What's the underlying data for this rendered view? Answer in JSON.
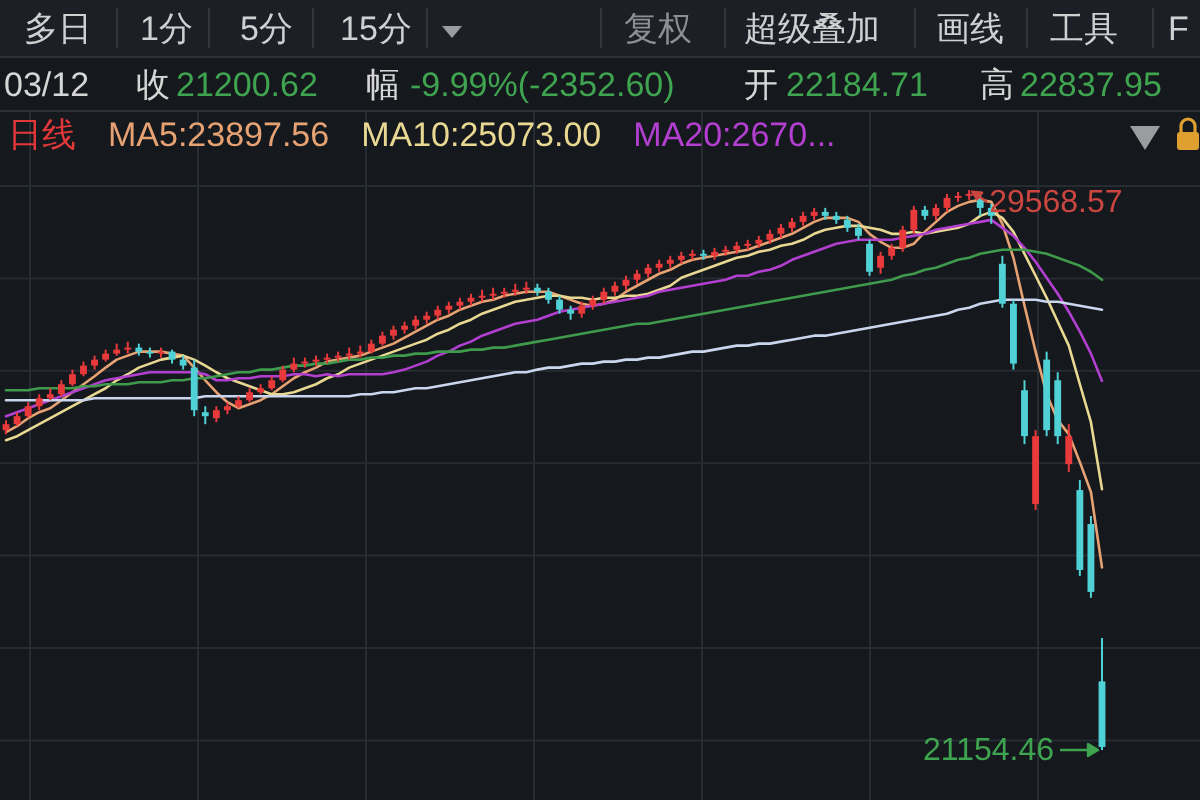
{
  "chart_data": {
    "type": "candlestick",
    "grid": true,
    "legend": "top left",
    "categories": [
      null,
      null,
      null,
      null,
      null,
      null,
      null,
      null,
      null,
      null,
      null,
      null,
      null,
      null,
      null,
      null,
      null,
      null,
      null,
      null,
      null,
      null,
      null,
      null,
      null,
      null,
      null,
      null,
      null,
      null,
      null,
      null,
      null,
      null,
      null,
      null,
      null,
      null,
      null,
      null,
      null,
      null,
      null,
      null,
      null,
      null,
      null,
      null,
      null,
      null,
      null,
      null,
      null,
      null,
      null,
      null,
      null,
      null,
      null,
      null,
      null,
      null,
      null,
      null,
      null,
      null,
      null,
      null,
      null,
      null,
      null,
      null,
      null,
      null,
      null,
      null,
      null,
      null,
      null,
      null,
      null,
      null,
      null,
      null,
      null,
      null,
      null,
      null,
      null,
      null,
      null,
      null,
      null,
      null,
      null,
      null,
      null,
      null,
      null,
      null
    ],
    "series": [
      {
        "name": "日线",
        "color": "#e2383a",
        "ohlc": [
          [
            25960,
            26110,
            25900,
            26050
          ],
          [
            26050,
            26230,
            26020,
            26170
          ],
          [
            26170,
            26380,
            26140,
            26320
          ],
          [
            26320,
            26500,
            26260,
            26440
          ],
          [
            26440,
            26590,
            26410,
            26500
          ],
          [
            26500,
            26710,
            26470,
            26650
          ],
          [
            26650,
            26870,
            26620,
            26800
          ],
          [
            26800,
            26990,
            26770,
            26930
          ],
          [
            26930,
            27080,
            26870,
            27020
          ],
          [
            27020,
            27170,
            26990,
            27110
          ],
          [
            27110,
            27260,
            27080,
            27170
          ],
          [
            27170,
            27290,
            27110,
            27200
          ],
          [
            27200,
            27260,
            27080,
            27140
          ],
          [
            27140,
            27200,
            27050,
            27110
          ],
          [
            27110,
            27200,
            27050,
            27140
          ],
          [
            27140,
            27170,
            26960,
            27020
          ],
          [
            27020,
            27080,
            26870,
            26930
          ],
          [
            26900,
            27020,
            26170,
            26260
          ],
          [
            26230,
            26320,
            26050,
            26170
          ],
          [
            26140,
            26320,
            26080,
            26260
          ],
          [
            26260,
            26380,
            26200,
            26320
          ],
          [
            26320,
            26470,
            26290,
            26410
          ],
          [
            26410,
            26590,
            26380,
            26530
          ],
          [
            26530,
            26650,
            26500,
            26590
          ],
          [
            26590,
            26770,
            26560,
            26710
          ],
          [
            26710,
            26930,
            26680,
            26870
          ],
          [
            26870,
            27050,
            26830,
            26960
          ],
          [
            26960,
            27050,
            26900,
            26990
          ],
          [
            26990,
            27080,
            26930,
            27020
          ],
          [
            27020,
            27110,
            26960,
            27050
          ],
          [
            27050,
            27140,
            26990,
            27080
          ],
          [
            27080,
            27200,
            27020,
            27110
          ],
          [
            27110,
            27230,
            27050,
            27140
          ],
          [
            27140,
            27320,
            27110,
            27260
          ],
          [
            27260,
            27440,
            27230,
            27380
          ],
          [
            27380,
            27530,
            27320,
            27470
          ],
          [
            27470,
            27590,
            27410,
            27530
          ],
          [
            27530,
            27680,
            27470,
            27620
          ],
          [
            27620,
            27740,
            27560,
            27680
          ],
          [
            27680,
            27830,
            27620,
            27770
          ],
          [
            27770,
            27890,
            27710,
            27830
          ],
          [
            27830,
            27950,
            27770,
            27890
          ],
          [
            27890,
            28010,
            27830,
            27950
          ],
          [
            27950,
            28070,
            27890,
            27980
          ],
          [
            27980,
            28100,
            27920,
            28010
          ],
          [
            28010,
            28100,
            27950,
            28040
          ],
          [
            28040,
            28160,
            27980,
            28070
          ],
          [
            28070,
            28190,
            28010,
            28100
          ],
          [
            28100,
            28160,
            27980,
            28040
          ],
          [
            28040,
            28100,
            27860,
            27920
          ],
          [
            27920,
            27980,
            27710,
            27770
          ],
          [
            27770,
            27830,
            27620,
            27710
          ],
          [
            27710,
            27890,
            27650,
            27830
          ],
          [
            27830,
            27980,
            27770,
            27920
          ],
          [
            27920,
            28100,
            27860,
            28040
          ],
          [
            28040,
            28190,
            27980,
            28130
          ],
          [
            28130,
            28280,
            28070,
            28220
          ],
          [
            28220,
            28370,
            28160,
            28310
          ],
          [
            28310,
            28460,
            28250,
            28400
          ],
          [
            28400,
            28520,
            28340,
            28460
          ],
          [
            28460,
            28580,
            28400,
            28520
          ],
          [
            28520,
            28640,
            28460,
            28580
          ],
          [
            28580,
            28670,
            28520,
            28610
          ],
          [
            28610,
            28670,
            28520,
            28580
          ],
          [
            28580,
            28700,
            28520,
            28640
          ],
          [
            28640,
            28730,
            28580,
            28670
          ],
          [
            28670,
            28790,
            28610,
            28730
          ],
          [
            28730,
            28820,
            28670,
            28760
          ],
          [
            28760,
            28880,
            28700,
            28820
          ],
          [
            28820,
            28970,
            28760,
            28910
          ],
          [
            28910,
            29060,
            28850,
            29000
          ],
          [
            29000,
            29150,
            28940,
            29090
          ],
          [
            29090,
            29240,
            29030,
            29180
          ],
          [
            29180,
            29300,
            29120,
            29240
          ],
          [
            29240,
            29300,
            29120,
            29180
          ],
          [
            29180,
            29240,
            29060,
            29120
          ],
          [
            29120,
            29180,
            28940,
            29000
          ],
          [
            29000,
            29060,
            28820,
            28880
          ],
          [
            28760,
            28820,
            28280,
            28340
          ],
          [
            28400,
            28640,
            28310,
            28580
          ],
          [
            28580,
            28760,
            28520,
            28700
          ],
          [
            28700,
            29030,
            28640,
            28970
          ],
          [
            28970,
            29330,
            28910,
            29270
          ],
          [
            29270,
            29330,
            29120,
            29180
          ],
          [
            29180,
            29360,
            29120,
            29300
          ],
          [
            29300,
            29510,
            29240,
            29450
          ],
          [
            29450,
            29540,
            29390,
            29480
          ],
          [
            29480,
            29568.57,
            29420,
            29510
          ],
          [
            29420,
            29510,
            29180,
            29300
          ],
          [
            29300,
            29360,
            29060,
            29180
          ],
          [
            28460,
            28580,
            27800,
            27860
          ],
          [
            27860,
            27920,
            26870,
            26960
          ],
          [
            26560,
            26710,
            25750,
            25870
          ],
          [
            24850,
            25960,
            24760,
            25870
          ],
          [
            27020,
            27140,
            25870,
            25960
          ],
          [
            26710,
            26830,
            25750,
            25870
          ],
          [
            25450,
            26050,
            25330,
            25870
          ],
          [
            25060,
            25210,
            23770,
            23860
          ],
          [
            24550,
            24670,
            23440,
            23530
          ],
          [
            22184.71,
            22837.95,
            21154.46,
            21200.62
          ]
        ],
        "colors": [
          "#e8393b",
          "#e8393b",
          "#e8393b",
          "#e8393b",
          "#e8393b",
          "#e8393b",
          "#e8393b",
          "#e8393b",
          "#e8393b",
          "#e8393b",
          "#e8393b",
          "#e8393b",
          "#4fd1d5",
          "#4fd1d5",
          "#e8393b",
          "#4fd1d5",
          "#4fd1d5",
          "#4fd1d5",
          "#4fd1d5",
          "#e8393b",
          "#e8393b",
          "#e8393b",
          "#e8393b",
          "#e8393b",
          "#e8393b",
          "#e8393b",
          "#e8393b",
          "#e8393b",
          "#e8393b",
          "#e8393b",
          "#e8393b",
          "#e8393b",
          "#e8393b",
          "#e8393b",
          "#e8393b",
          "#e8393b",
          "#e8393b",
          "#e8393b",
          "#e8393b",
          "#e8393b",
          "#e8393b",
          "#e8393b",
          "#e8393b",
          "#e8393b",
          "#e8393b",
          "#e8393b",
          "#e8393b",
          "#e8393b",
          "#4fd1d5",
          "#4fd1d5",
          "#4fd1d5",
          "#4fd1d5",
          "#e8393b",
          "#e8393b",
          "#e8393b",
          "#e8393b",
          "#e8393b",
          "#e8393b",
          "#e8393b",
          "#e8393b",
          "#e8393b",
          "#e8393b",
          "#e8393b",
          "#4fd1d5",
          "#e8393b",
          "#e8393b",
          "#e8393b",
          "#e8393b",
          "#e8393b",
          "#e8393b",
          "#e8393b",
          "#e8393b",
          "#e8393b",
          "#e8393b",
          "#4fd1d5",
          "#4fd1d5",
          "#4fd1d5",
          "#4fd1d5",
          "#4fd1d5",
          "#e8393b",
          "#e8393b",
          "#e8393b",
          "#e8393b",
          "#4fd1d5",
          "#e8393b",
          "#e8393b",
          "#e8393b",
          "#e8393b",
          "#4fd1d5",
          "#4fd1d5",
          "#4fd1d5",
          "#4fd1d5",
          "#4fd1d5",
          "#e8393b",
          "#4fd1d5",
          "#4fd1d5",
          "#e8393b",
          "#4fd1d5",
          "#4fd1d5",
          "#4fd1d5"
        ]
      },
      {
        "type": "line",
        "name": "MA5:23897.56",
        "color": "#e6a272",
        "values": [
          25930,
          26020,
          26140,
          26230,
          26290,
          26410,
          26530,
          26650,
          26770,
          26900,
          27020,
          27080,
          27140,
          27140,
          27140,
          27110,
          27080,
          26900,
          26710,
          26530,
          26380,
          26290,
          26350,
          26410,
          26500,
          26620,
          26740,
          26830,
          26900,
          26990,
          27020,
          27050,
          27080,
          27140,
          27200,
          27260,
          27350,
          27440,
          27530,
          27620,
          27680,
          27770,
          27830,
          27890,
          27920,
          27980,
          28010,
          28040,
          28040,
          28040,
          27980,
          27920,
          27860,
          27830,
          27860,
          27920,
          28040,
          28130,
          28220,
          28310,
          28370,
          28460,
          28520,
          28550,
          28580,
          28610,
          28640,
          28670,
          28730,
          28790,
          28850,
          28910,
          29000,
          29090,
          29150,
          29150,
          29150,
          29090,
          28910,
          28790,
          28700,
          28700,
          28760,
          28940,
          29090,
          29240,
          29330,
          29390,
          29420,
          29390,
          29060,
          28550,
          27830,
          27140,
          26500,
          26110,
          25900,
          25480,
          25030,
          23897.56
        ]
      },
      {
        "type": "line",
        "name": "MA10:25073.00",
        "color": "#e8d892",
        "values": [
          25810,
          25870,
          25960,
          26050,
          26140,
          26230,
          26320,
          26410,
          26500,
          26590,
          26710,
          26800,
          26900,
          26960,
          27020,
          27050,
          27080,
          27020,
          26930,
          26830,
          26740,
          26680,
          26620,
          26560,
          26500,
          26500,
          26530,
          26590,
          26650,
          26740,
          26800,
          26900,
          26960,
          27020,
          27080,
          27140,
          27200,
          27260,
          27320,
          27410,
          27470,
          27560,
          27620,
          27710,
          27770,
          27830,
          27890,
          27920,
          27950,
          27980,
          27980,
          27950,
          27950,
          27920,
          27950,
          27950,
          27980,
          27980,
          28010,
          28070,
          28130,
          28250,
          28310,
          28370,
          28430,
          28490,
          28550,
          28580,
          28640,
          28670,
          28730,
          28760,
          28820,
          28910,
          28970,
          29000,
          29030,
          29030,
          29000,
          28970,
          28910,
          28910,
          28940,
          28910,
          28940,
          28970,
          29000,
          29060,
          29180,
          29240,
          29150,
          28940,
          28610,
          28280,
          27950,
          27590,
          27230,
          26650,
          26080,
          25073
        ]
      },
      {
        "type": "line",
        "name": "MA20:2670...",
        "color": "#b23fd0",
        "values": [
          26170,
          26230,
          26290,
          26350,
          26410,
          26470,
          26530,
          26590,
          26650,
          26710,
          26740,
          26770,
          26800,
          26830,
          26830,
          26830,
          26830,
          26830,
          26800,
          26710,
          26710,
          26740,
          26740,
          26770,
          26770,
          26770,
          26800,
          26800,
          26770,
          26800,
          26770,
          26800,
          26800,
          26800,
          26800,
          26830,
          26870,
          26930,
          26990,
          27080,
          27140,
          27230,
          27290,
          27380,
          27440,
          27500,
          27560,
          27590,
          27620,
          27680,
          27740,
          27770,
          27800,
          27830,
          27860,
          27890,
          27920,
          27950,
          27980,
          28040,
          28070,
          28100,
          28130,
          28160,
          28190,
          28220,
          28280,
          28280,
          28340,
          28370,
          28430,
          28520,
          28580,
          28640,
          28700,
          28760,
          28790,
          28820,
          28820,
          28820,
          28820,
          28850,
          28880,
          28910,
          28970,
          29000,
          29030,
          29060,
          29090,
          29120,
          29000,
          28880,
          28700,
          28490,
          28250,
          28010,
          27740,
          27440,
          27110,
          26700
        ]
      },
      {
        "type": "line",
        "color": "#3f9a4c",
        "values": [
          26560,
          26560,
          26560,
          26590,
          26590,
          26590,
          26590,
          26620,
          26620,
          26650,
          26650,
          26650,
          26680,
          26680,
          26680,
          26710,
          26710,
          26740,
          26740,
          26770,
          26800,
          26830,
          26830,
          26870,
          26870,
          26900,
          26930,
          26930,
          26960,
          26960,
          26990,
          27020,
          27020,
          27050,
          27050,
          27080,
          27080,
          27110,
          27110,
          27140,
          27140,
          27140,
          27170,
          27170,
          27200,
          27200,
          27230,
          27260,
          27290,
          27320,
          27350,
          27380,
          27410,
          27440,
          27470,
          27500,
          27530,
          27560,
          27560,
          27590,
          27620,
          27650,
          27680,
          27710,
          27740,
          27770,
          27800,
          27830,
          27860,
          27890,
          27920,
          27950,
          27980,
          28010,
          28040,
          28070,
          28100,
          28130,
          28160,
          28190,
          28220,
          28280,
          28310,
          28370,
          28400,
          28460,
          28520,
          28550,
          28610,
          28640,
          28670,
          28670,
          28670,
          28640,
          28610,
          28550,
          28490,
          28430,
          28340,
          28220
        ]
      },
      {
        "type": "line",
        "color": "#c9d6ee",
        "values": [
          26410,
          26410,
          26410,
          26410,
          26410,
          26410,
          26410,
          26410,
          26440,
          26440,
          26440,
          26440,
          26440,
          26440,
          26440,
          26440,
          26440,
          26440,
          26470,
          26470,
          26470,
          26470,
          26470,
          26470,
          26470,
          26470,
          26470,
          26470,
          26470,
          26470,
          26470,
          26470,
          26500,
          26500,
          26530,
          26530,
          26560,
          26590,
          26590,
          26620,
          26650,
          26680,
          26710,
          26740,
          26770,
          26800,
          26830,
          26830,
          26870,
          26900,
          26900,
          26930,
          26960,
          26960,
          26990,
          26990,
          27020,
          27020,
          27050,
          27050,
          27080,
          27110,
          27140,
          27140,
          27170,
          27200,
          27230,
          27230,
          27260,
          27260,
          27290,
          27320,
          27350,
          27380,
          27380,
          27410,
          27440,
          27470,
          27500,
          27530,
          27560,
          27590,
          27620,
          27650,
          27680,
          27710,
          27770,
          27800,
          27860,
          27890,
          27920,
          27920,
          27920,
          27920,
          27890,
          27890,
          27860,
          27830,
          27800,
          27770
        ]
      }
    ],
    "annotations": [
      "多日",
      "1分",
      "5分",
      "15分",
      "复权",
      "超级叠加",
      "画线",
      "工具",
      "F",
      "03/12",
      "收",
      "21200.62",
      "幅",
      "-9.99%(-2352.60)",
      "开",
      "22184.71",
      "高",
      "22837.95",
      "29568.57",
      "21154.46"
    ]
  }
}
